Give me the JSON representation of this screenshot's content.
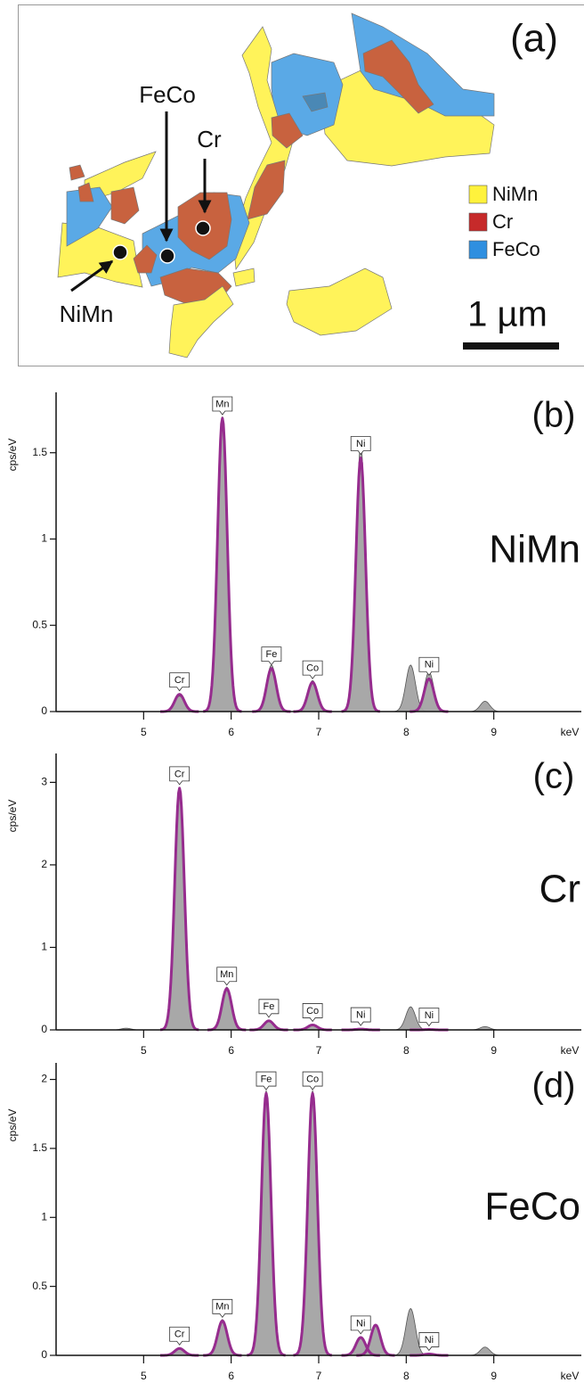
{
  "map": {
    "panel_label": "(a)",
    "annotations": [
      "FeCo",
      "Cr",
      "NiMn"
    ],
    "legend": [
      {
        "name": "NiMn",
        "color": "#fff23c"
      },
      {
        "name": "Cr",
        "color": "#c62a2a"
      },
      {
        "name": "FeCo",
        "color": "#2f8fe0"
      }
    ],
    "scale_bar": "1 µm"
  },
  "chart_data": [
    {
      "type": "spectrum",
      "panel_label": "(b)",
      "phase_label": "NiMn",
      "y_label": "cps/eV",
      "x_label": "keV",
      "xlim": [
        4,
        10
      ],
      "xticks": [
        5,
        6,
        7,
        8,
        9
      ],
      "ylim": [
        0,
        1.85
      ],
      "yticks": [
        0,
        0.5,
        1,
        1.5
      ],
      "series": [
        {
          "color": "#a3a3a3",
          "x": [
            5.41,
            5.9,
            6.46,
            6.93,
            7.48,
            8.05,
            8.26,
            8.9
          ],
          "values": [
            0.09,
            1.71,
            0.27,
            0.18,
            1.55,
            0.27,
            0.23,
            0.06
          ]
        },
        {
          "color": "#962c8e",
          "x": [
            5.41,
            5.9,
            6.46,
            6.93,
            7.48,
            8.26
          ],
          "values": [
            0.1,
            1.7,
            0.25,
            0.17,
            1.47,
            0.19
          ],
          "labels": [
            "Cr",
            "Mn",
            "Fe",
            "Co",
            "Ni",
            "Ni"
          ]
        }
      ]
    },
    {
      "type": "spectrum",
      "panel_label": "(c)",
      "phase_label": "Cr",
      "y_label": "cps/eV",
      "x_label": "keV",
      "xlim": [
        4,
        10
      ],
      "xticks": [
        5,
        6,
        7,
        8,
        9
      ],
      "ylim": [
        0,
        3.35
      ],
      "yticks": [
        0,
        1,
        2,
        3
      ],
      "series": [
        {
          "color": "#a3a3a3",
          "x": [
            4.8,
            5.41,
            5.95,
            6.43,
            6.93,
            8.05,
            8.9
          ],
          "values": [
            0.02,
            2.9,
            0.52,
            0.12,
            0.06,
            0.28,
            0.04
          ]
        },
        {
          "color": "#962c8e",
          "x": [
            5.41,
            5.95,
            6.43,
            6.93,
            7.48,
            8.26
          ],
          "values": [
            2.93,
            0.5,
            0.11,
            0.06,
            0.01,
            0.005
          ],
          "labels": [
            "Cr",
            "Mn",
            "Fe",
            "Co",
            "Ni",
            "Ni"
          ]
        }
      ]
    },
    {
      "type": "spectrum",
      "panel_label": "(d)",
      "phase_label": "FeCo",
      "y_label": "cps/eV",
      "x_label": "keV",
      "xlim": [
        4,
        10
      ],
      "xticks": [
        5,
        6,
        7,
        8,
        9
      ],
      "ylim": [
        0,
        2.12
      ],
      "yticks": [
        0,
        0.5,
        1,
        1.5,
        2
      ],
      "series": [
        {
          "color": "#a3a3a3",
          "x": [
            5.41,
            5.9,
            6.4,
            6.93,
            7.48,
            7.65,
            8.05,
            8.9
          ],
          "values": [
            0.05,
            0.26,
            1.92,
            1.92,
            0.13,
            0.22,
            0.34,
            0.06
          ]
        },
        {
          "color": "#962c8e",
          "x": [
            5.41,
            5.9,
            6.4,
            6.93,
            7.48,
            7.65,
            8.26
          ],
          "values": [
            0.05,
            0.25,
            1.9,
            1.9,
            0.13,
            0.22,
            0.01
          ],
          "labels": [
            "Cr",
            "Mn",
            "Fe",
            "Co",
            "Ni",
            null,
            "Ni"
          ]
        }
      ]
    }
  ]
}
